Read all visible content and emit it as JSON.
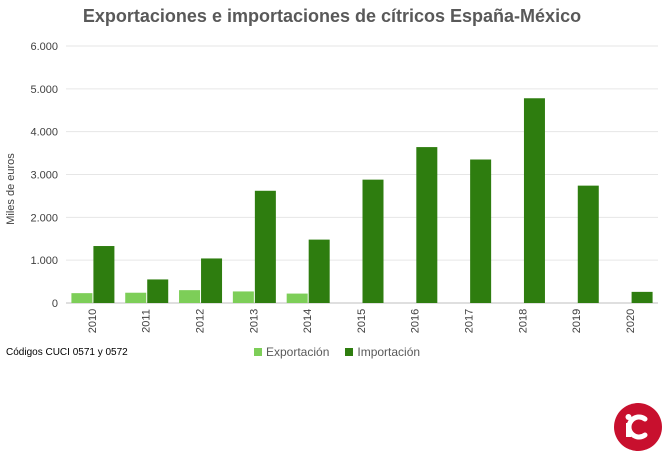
{
  "chart_data": {
    "type": "bar",
    "title": "Exportaciones e importaciones de cítricos España-México",
    "ylabel": "Miles de euros",
    "xlabel": "",
    "categories": [
      "2010",
      "2011",
      "2012",
      "2013",
      "2014",
      "2015",
      "2016",
      "2017",
      "2018",
      "2019",
      "2020"
    ],
    "series": [
      {
        "name": "Exportación",
        "color": "#7dce58",
        "values": [
          230,
          240,
          300,
          270,
          220,
          0,
          0,
          0,
          0,
          0,
          0
        ]
      },
      {
        "name": "Importación",
        "color": "#2e7d0f",
        "values": [
          1330,
          550,
          1040,
          2620,
          1480,
          2880,
          3640,
          3350,
          4780,
          2740,
          260
        ]
      }
    ],
    "ylim": [
      0,
      6000
    ],
    "yticks": [
      0,
      1000,
      2000,
      3000,
      4000,
      5000,
      6000
    ],
    "ytick_labels": [
      "0",
      "1.000",
      "2.000",
      "3.000",
      "4.000",
      "5.000",
      "6.000"
    ],
    "grid": true,
    "legend_position": "bottom"
  },
  "footnote": "Códigos CUCI 0571 y 0572",
  "logo_icon": "ic-logo-icon",
  "logo_color": "#c8102e"
}
